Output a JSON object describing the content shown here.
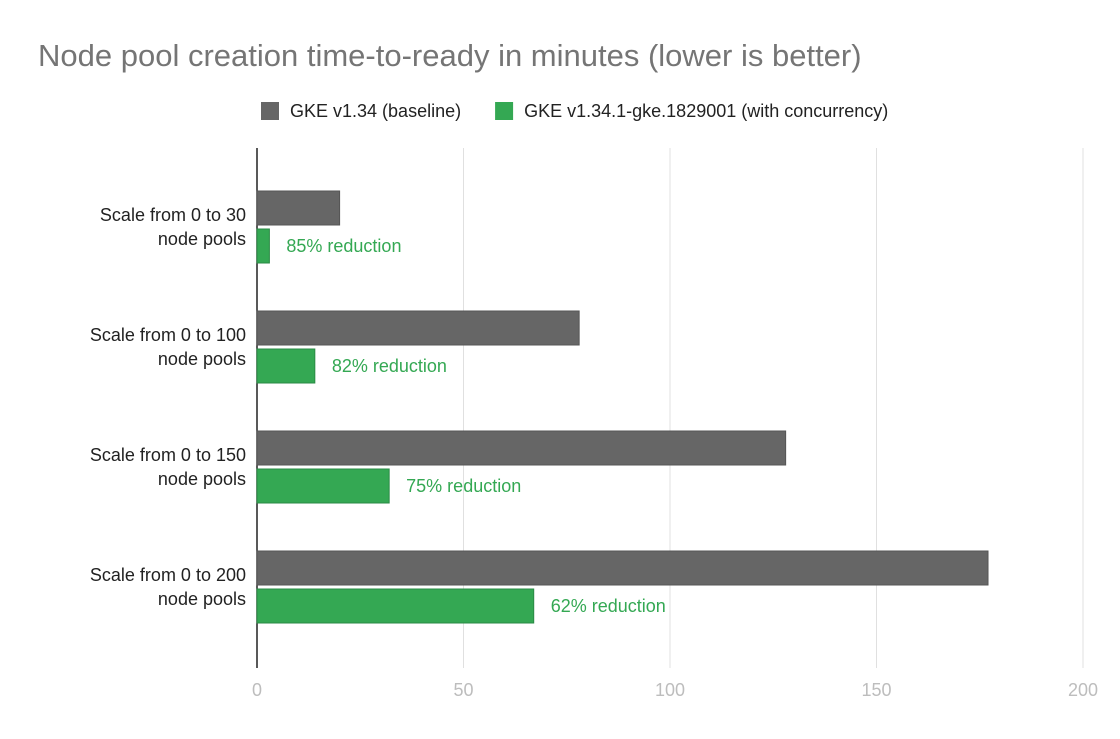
{
  "chart_data": {
    "type": "bar",
    "orientation": "horizontal",
    "title": "Node pool creation time-to-ready in minutes (lower is better)",
    "categories": [
      "Scale from 0 to 30 node pools",
      "Scale from 0 to 100 node pools",
      "Scale from 0 to 150 node pools",
      "Scale from 0 to 200 node pools"
    ],
    "series": [
      {
        "name": "GKE v1.34 (baseline)",
        "color": "#666666",
        "values": [
          20,
          78,
          128,
          177
        ]
      },
      {
        "name": "GKE v1.34.1-gke.1829001 (with concurrency)",
        "color": "#34a853",
        "values": [
          3,
          14,
          32,
          67
        ]
      }
    ],
    "annotations": [
      "85% reduction",
      "82% reduction",
      "75% reduction",
      "62% reduction"
    ],
    "xlim": [
      0,
      200
    ],
    "xticks": [
      0,
      50,
      100,
      150,
      200
    ],
    "grid": true,
    "legend": "top"
  }
}
